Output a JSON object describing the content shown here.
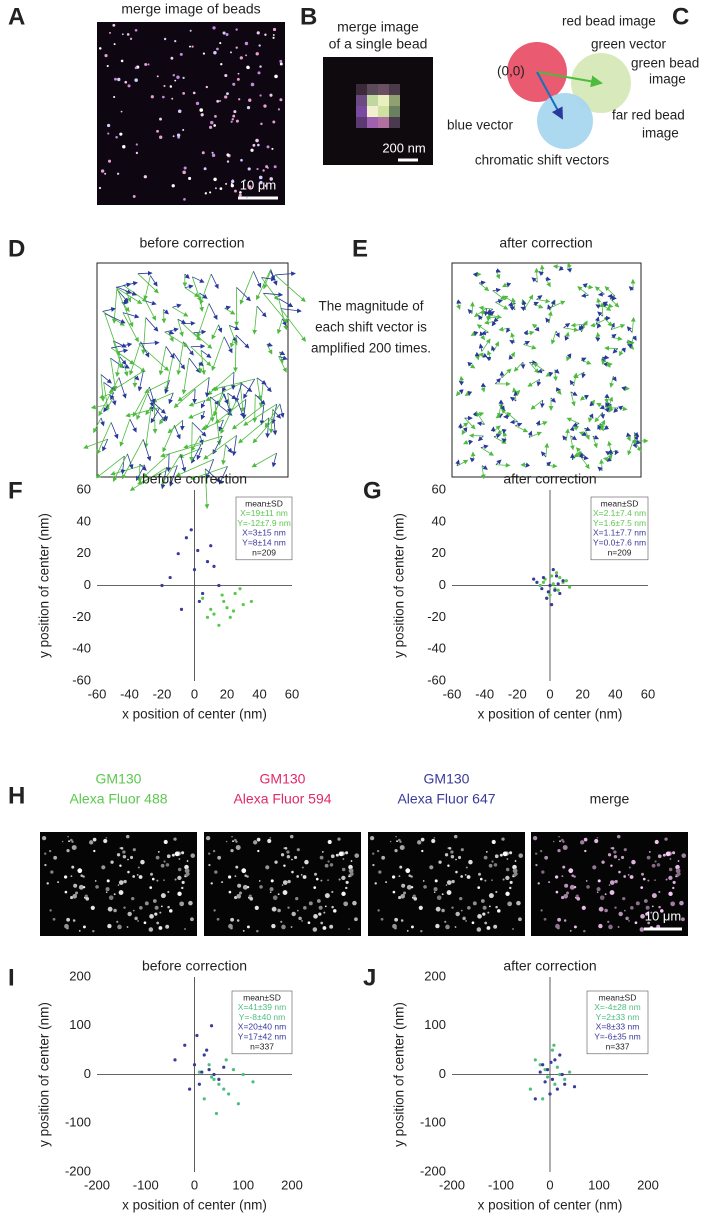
{
  "panels": {
    "A": {
      "letter": "A",
      "title": "merge image of beads",
      "scale_bar": "10 μm"
    },
    "B": {
      "letter": "B",
      "title": [
        "merge image",
        "of a single bead"
      ],
      "scale_bar": "200 nm"
    },
    "C": {
      "letter": "C",
      "red": "red bead image",
      "green_vector": "green vector",
      "green": [
        "green bead",
        "image"
      ],
      "origin": "(0,0)",
      "blue_vector": "blue vector",
      "far_red": [
        "far red bead",
        "image"
      ],
      "caption": "chromatic shift vectors"
    },
    "D": {
      "letter": "D",
      "title": "before correction"
    },
    "E": {
      "letter": "E",
      "title": "after correction"
    },
    "note": [
      "The magnitude of",
      "each shift vector is",
      "amplified 200 times."
    ],
    "H": {
      "letter": "H",
      "scale_bar": "10 μm",
      "images": [
        {
          "lines": [
            "GM130",
            "Alexa Fluor 488"
          ],
          "color": "#5cc84e"
        },
        {
          "lines": [
            "GM130",
            "Alexa Fluor 594"
          ],
          "color": "#e0286a"
        },
        {
          "lines": [
            "GM130",
            "Alexa Fluor 647"
          ],
          "color": "#3a3a9a"
        },
        {
          "lines": [
            "merge"
          ],
          "color": "#222222"
        }
      ]
    }
  },
  "chart_data": [
    {
      "type": "scatter",
      "panel_label": "F",
      "title": "before correction",
      "xlabel": "x position of center (nm)",
      "ylabel": "y position of center (nm)",
      "xlim": [
        -60,
        60
      ],
      "ylim": [
        -60,
        60
      ],
      "xticks": [
        -60,
        -40,
        -20,
        0,
        20,
        40,
        60
      ],
      "yticks": [
        -60,
        -40,
        -20,
        0,
        20,
        40,
        60
      ],
      "legend": [
        {
          "text": "mean±SD",
          "color": "#222222"
        },
        {
          "text": "X=19±11 nm",
          "color": "#5cc84e"
        },
        {
          "text": "Y=-12±7.9 nm",
          "color": "#5cc84e"
        },
        {
          "text": "X=3±15 nm",
          "color": "#3a3a9a"
        },
        {
          "text": "Y=8±14 nm",
          "color": "#3a3a9a"
        },
        {
          "text": "n=209",
          "color": "#222222"
        }
      ],
      "series": [
        {
          "color": "#5cc84e",
          "x": [
            10,
            18,
            22,
            25,
            12,
            30,
            15,
            5,
            20,
            28,
            35,
            8,
            17,
            24
          ],
          "values": [
            -15,
            -10,
            -20,
            -5,
            -18,
            -12,
            -25,
            -8,
            -14,
            -2,
            -10,
            -20,
            -6,
            -16
          ]
        },
        {
          "color": "#3a3a9a",
          "x": [
            -10,
            -5,
            0,
            5,
            10,
            -15,
            -20,
            8,
            3,
            -2,
            12,
            -8,
            15,
            2
          ],
          "values": [
            20,
            30,
            10,
            -5,
            25,
            5,
            0,
            15,
            -10,
            35,
            12,
            -15,
            0,
            22
          ]
        }
      ]
    },
    {
      "type": "scatter",
      "panel_label": "G",
      "title": "after correction",
      "xlabel": "x position of center (nm)",
      "ylabel": "y position of center (nm)",
      "xlim": [
        -60,
        60
      ],
      "ylim": [
        -60,
        60
      ],
      "xticks": [
        -60,
        -40,
        -20,
        0,
        20,
        40,
        60
      ],
      "yticks": [
        -60,
        -40,
        -20,
        0,
        20,
        40,
        60
      ],
      "legend": [
        {
          "text": "mean±SD",
          "color": "#222222"
        },
        {
          "text": "X=2.1±7.4 nm",
          "color": "#5cc84e"
        },
        {
          "text": "Y=1.6±7.5 nm",
          "color": "#5cc84e"
        },
        {
          "text": "X=1.1±7.7 nm",
          "color": "#3a3a9a"
        },
        {
          "text": "Y=0.0±7.6 nm",
          "color": "#3a3a9a"
        },
        {
          "text": "n=209",
          "color": "#222222"
        }
      ],
      "series": [
        {
          "color": "#5cc84e",
          "x": [
            2,
            5,
            -3,
            8,
            0,
            4,
            -6,
            10,
            3,
            1,
            -2,
            6,
            12,
            -4
          ],
          "values": [
            1,
            -3,
            4,
            2,
            -6,
            8,
            0,
            3,
            -2,
            6,
            -8,
            5,
            -1,
            2
          ]
        },
        {
          "color": "#3a3a9a",
          "x": [
            0,
            -4,
            3,
            -8,
            6,
            2,
            -2,
            5,
            -10,
            1,
            8,
            -5,
            4,
            -1
          ],
          "values": [
            0,
            5,
            -3,
            2,
            -5,
            10,
            -8,
            1,
            4,
            -12,
            3,
            -2,
            6,
            -4
          ]
        }
      ]
    },
    {
      "type": "scatter",
      "panel_label": "I",
      "title": "before correction",
      "xlabel": "x position of center (nm)",
      "ylabel": "y position of center (nm)",
      "xlim": [
        -200,
        200
      ],
      "ylim": [
        -200,
        200
      ],
      "xticks": [
        -200,
        -100,
        0,
        100,
        200
      ],
      "yticks": [
        -200,
        -100,
        0,
        100,
        200
      ],
      "legend": [
        {
          "text": "mean±SD",
          "color": "#222222"
        },
        {
          "text": "X=41±39 nm",
          "color": "#4dbf80"
        },
        {
          "text": "Y=-8±40 nm",
          "color": "#4dbf80"
        },
        {
          "text": "X=20±40 nm",
          "color": "#3a3a9a"
        },
        {
          "text": "Y=17±42 nm",
          "color": "#3a3a9a"
        },
        {
          "text": "n=337",
          "color": "#222222"
        }
      ],
      "series": [
        {
          "color": "#4dbf80",
          "x": [
            40,
            60,
            80,
            20,
            100,
            50,
            30,
            70,
            90,
            10,
            45,
            120,
            65,
            35
          ],
          "values": [
            -10,
            -30,
            10,
            -50,
            0,
            -20,
            20,
            -40,
            -60,
            5,
            -80,
            -15,
            30,
            -5
          ]
        },
        {
          "color": "#3a3a9a",
          "x": [
            0,
            20,
            40,
            -20,
            10,
            30,
            -40,
            50,
            5,
            25,
            -10,
            60,
            15,
            35
          ],
          "values": [
            20,
            40,
            0,
            60,
            -20,
            10,
            30,
            -10,
            80,
            50,
            -30,
            15,
            5,
            100
          ]
        }
      ]
    },
    {
      "type": "scatter",
      "panel_label": "J",
      "title": "after correction",
      "xlabel": "x position of center (nm)",
      "ylabel": "y position of center (nm)",
      "xlim": [
        -200,
        200
      ],
      "ylim": [
        -200,
        200
      ],
      "xticks": [
        -200,
        -100,
        0,
        100,
        200
      ],
      "yticks": [
        -200,
        -100,
        0,
        100,
        200
      ],
      "legend": [
        {
          "text": "mean±SD",
          "color": "#222222"
        },
        {
          "text": "X=-4±28 nm",
          "color": "#4dbf80"
        },
        {
          "text": "Y=2±33 nm",
          "color": "#4dbf80"
        },
        {
          "text": "X=8±33 nm",
          "color": "#3a3a9a"
        },
        {
          "text": "Y=-6±35 nm",
          "color": "#3a3a9a"
        },
        {
          "text": "n=337",
          "color": "#222222"
        }
      ],
      "series": [
        {
          "color": "#4dbf80",
          "x": [
            -10,
            10,
            -30,
            20,
            0,
            -20,
            30,
            5,
            -5,
            15,
            -40,
            40,
            8,
            -15
          ],
          "values": [
            10,
            -20,
            30,
            0,
            -40,
            20,
            -10,
            50,
            -5,
            15,
            -30,
            5,
            60,
            -50
          ]
        },
        {
          "color": "#3a3a9a",
          "x": [
            5,
            -5,
            15,
            -15,
            25,
            0,
            10,
            -20,
            30,
            -10,
            20,
            -30,
            50,
            2
          ],
          "values": [
            -10,
            10,
            -30,
            20,
            0,
            -40,
            30,
            5,
            -20,
            -15,
            40,
            -50,
            -25,
            25
          ]
        }
      ]
    }
  ]
}
